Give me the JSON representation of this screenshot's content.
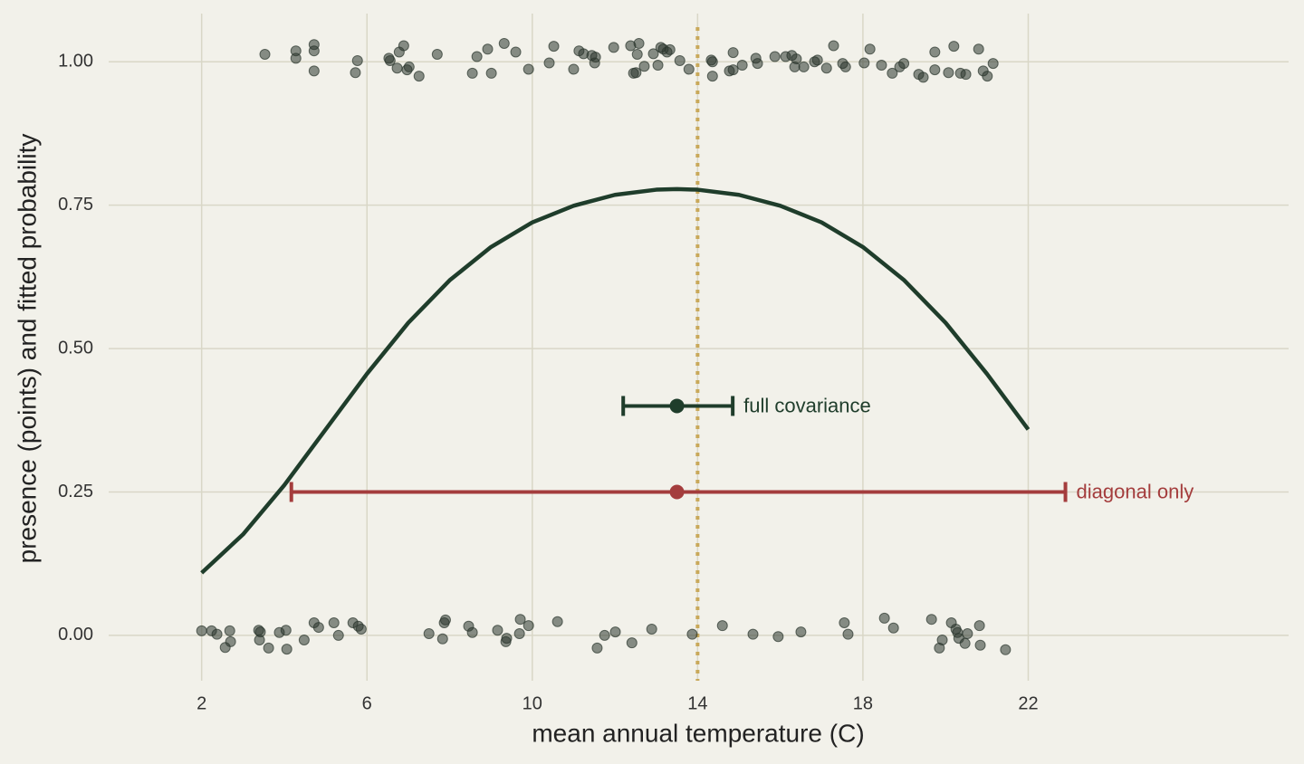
{
  "chart_data": {
    "type": "scatter",
    "xlabel": "mean annual temperature (C)",
    "ylabel": "presence (points) and fitted probability",
    "xlim": [
      -0.25,
      28.3
    ],
    "ylim": [
      -0.079,
      1.084
    ],
    "xticks": [
      2,
      6,
      10,
      14,
      18,
      22
    ],
    "yticks": [
      {
        "value": 0,
        "label": "0.00"
      },
      {
        "value": 0.25,
        "label": "0.25"
      },
      {
        "value": 0.5,
        "label": "0.50"
      },
      {
        "value": 0.75,
        "label": "0.75"
      },
      {
        "value": 1,
        "label": "1.00"
      }
    ],
    "grid": true,
    "points": {
      "color": "#2b362d",
      "x": [
        3.53,
        4.28,
        4.28,
        4.72,
        4.72,
        4.72,
        5.77,
        5.72,
        6.53,
        6.56,
        6.78,
        6.89,
        6.73,
        7.02,
        6.97,
        7.26,
        7.7,
        8.55,
        8.66,
        8.92,
        9.01,
        9.32,
        9.6,
        9.91,
        10.41,
        10.52,
        11.0,
        11.13,
        11.24,
        11.44,
        11.51,
        11.53,
        11.97,
        12.38,
        12.45,
        12.58,
        12.51,
        12.54,
        12.71,
        12.93,
        13.04,
        13.11,
        13.17,
        13.26,
        13.33,
        13.57,
        13.79,
        14.33,
        14.36,
        14.36,
        14.77,
        14.86,
        14.86,
        15.08,
        15.41,
        15.45,
        15.87,
        16.13,
        16.28,
        16.39,
        16.35,
        16.57,
        16.83,
        16.9,
        17.12,
        17.29,
        17.51,
        17.58,
        18.03,
        18.17,
        18.45,
        18.71,
        18.89,
        18.99,
        19.35,
        19.46,
        19.74,
        19.74,
        20.07,
        20.2,
        20.36,
        20.49,
        20.8,
        20.91,
        21.01,
        21.15,
        2.0,
        2.24,
        2.37,
        2.57,
        2.68,
        2.7,
        3.38,
        3.42,
        3.4,
        3.62,
        3.88,
        4.04,
        4.06,
        4.48,
        4.72,
        4.83,
        5.2,
        5.31,
        5.66,
        5.79,
        5.86,
        7.5,
        7.83,
        7.87,
        7.9,
        8.46,
        8.55,
        9.16,
        9.36,
        9.38,
        9.71,
        9.69,
        9.91,
        10.61,
        11.57,
        11.75,
        12.01,
        12.41,
        12.89,
        13.87,
        14.6,
        15.34,
        15.95,
        16.5,
        17.55,
        17.64,
        18.52,
        18.74,
        19.66,
        19.85,
        19.92,
        20.14,
        20.25,
        20.29,
        20.32,
        20.47,
        20.53,
        20.82,
        20.84,
        21.45
      ],
      "y": [
        1.013,
        1.019,
        1.006,
        1.03,
        1.019,
        0.984,
        1.002,
        0.981,
        1.006,
        1.002,
        1.017,
        1.028,
        0.989,
        0.991,
        0.986,
        0.975,
        1.013,
        0.98,
        1.009,
        1.022,
        0.98,
        1.032,
        1.017,
        0.987,
        0.998,
        1.027,
        0.987,
        1.019,
        1.014,
        1.011,
        0.998,
        1.008,
        1.025,
        1.028,
        0.98,
        1.032,
        0.981,
        1.013,
        0.992,
        1.014,
        0.994,
        1.025,
        1.022,
        1.017,
        1.021,
        1.002,
        0.987,
        1.003,
        1.0,
        0.975,
        0.984,
        0.986,
        1.016,
        0.994,
        1.006,
        0.997,
        1.009,
        1.009,
        1.011,
        1.005,
        0.991,
        0.991,
        1.0,
        1.003,
        0.989,
        1.028,
        0.997,
        0.991,
        0.998,
        1.022,
        0.994,
        0.98,
        0.991,
        0.997,
        0.978,
        0.973,
        1.017,
        0.986,
        0.981,
        1.027,
        0.98,
        0.978,
        1.022,
        0.984,
        0.975,
        0.997,
        0.008,
        0.008,
        0.002,
        -0.021,
        0.008,
        -0.011,
        0.009,
        0.006,
        -0.008,
        -0.022,
        0.005,
        0.009,
        -0.024,
        -0.008,
        0.022,
        0.014,
        0.022,
        0.0,
        0.022,
        0.016,
        0.011,
        0.003,
        -0.006,
        0.022,
        0.027,
        0.016,
        0.005,
        0.009,
        -0.011,
        -0.005,
        0.028,
        0.003,
        0.017,
        0.024,
        -0.022,
        0.0,
        0.006,
        -0.013,
        0.011,
        0.002,
        0.017,
        0.002,
        -0.002,
        0.006,
        0.022,
        0.002,
        0.03,
        0.013,
        0.028,
        -0.022,
        -0.008,
        0.022,
        0.011,
        0.005,
        -0.005,
        -0.014,
        0.003,
        0.017,
        -0.017,
        -0.025
      ]
    },
    "curve": {
      "color": "#1f3d2b",
      "x": [
        2,
        3,
        4,
        5,
        6,
        7,
        8,
        9,
        10,
        11,
        12,
        13,
        13.5,
        14,
        15,
        16,
        17,
        18,
        19,
        20,
        21,
        22
      ],
      "y": [
        0.109,
        0.176,
        0.262,
        0.359,
        0.456,
        0.545,
        0.619,
        0.677,
        0.72,
        0.749,
        0.768,
        0.777,
        0.778,
        0.777,
        0.768,
        0.749,
        0.72,
        0.677,
        0.619,
        0.545,
        0.456,
        0.359
      ]
    },
    "vline": {
      "x": 14,
      "color": "#c9a95a"
    },
    "intervals": [
      {
        "name": "full covariance",
        "color": "#1f3d2b",
        "x": 13.5,
        "y": 0.4,
        "low": 12.2,
        "high": 14.85
      },
      {
        "name": "diagonal only",
        "color": "#a43d3d",
        "x": 13.5,
        "y": 0.25,
        "low": 4.17,
        "high": 22.9
      }
    ]
  }
}
